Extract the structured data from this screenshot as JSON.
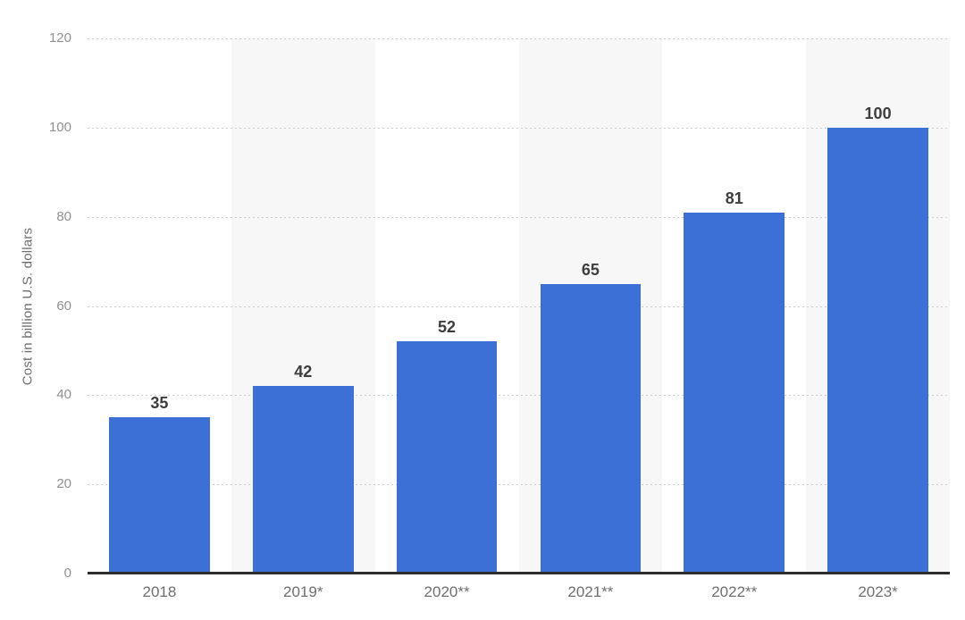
{
  "chart_data": {
    "type": "bar",
    "categories": [
      "2018",
      "2019*",
      "2020**",
      "2021**",
      "2022**",
      "2023*"
    ],
    "values": [
      35,
      42,
      52,
      65,
      81,
      100
    ],
    "value_labels": [
      "35",
      "42",
      "52",
      "65",
      "81",
      "100"
    ],
    "title": "",
    "xlabel": "",
    "ylabel": "Cost in billion U.S. dollars",
    "ylim": [
      0,
      120
    ],
    "yticks": [
      0,
      20,
      40,
      60,
      80,
      100,
      120
    ],
    "grid": "horizontal-dotted",
    "legend": "none",
    "colors": {
      "bar": "#3D70D6",
      "stripe": "#f7f7f7",
      "gridline": "#cbcbcb",
      "axis_line": "#2d2d2d",
      "value_label": "#3d3d3d",
      "tick_label": "#8f8f8f",
      "category_label": "#6e6e6e",
      "axis_title": "#6e6e6e",
      "background": "#ffffff"
    },
    "striped_columns": [
      1,
      3,
      5
    ]
  }
}
